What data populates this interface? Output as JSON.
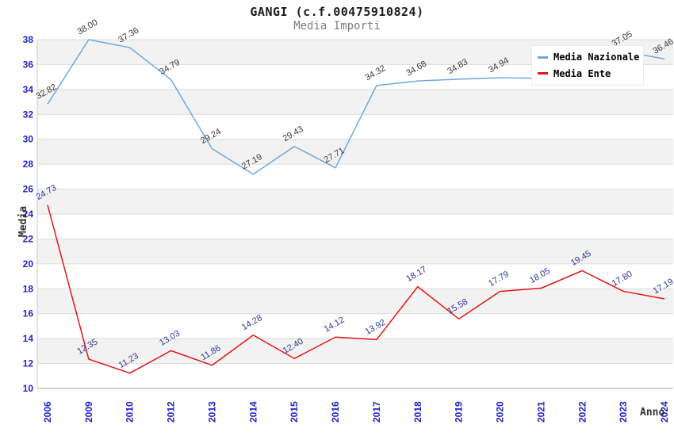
{
  "chart_data": {
    "type": "line",
    "title": "GANGI (c.f.00475910824)",
    "subtitle": "Media Importi",
    "xlabel": "Anno",
    "ylabel": "Media",
    "ylim": [
      10,
      38
    ],
    "ytick_step": 2,
    "grid": "horizontal gridlines with interlaced 2-unit bands",
    "legend_position": "top-right overlay",
    "categories": [
      "2006",
      "2009",
      "2010",
      "2012",
      "2013",
      "2014",
      "2015",
      "2016",
      "2017",
      "2018",
      "2019",
      "2020",
      "2021",
      "2022",
      "2023",
      "2024"
    ],
    "series": [
      {
        "name": "Media Nazionale",
        "color": "#6fa8dc",
        "label_color": "#383838",
        "values": [
          32.82,
          38.0,
          37.36,
          34.79,
          29.24,
          27.19,
          29.43,
          27.71,
          34.32,
          34.68,
          34.83,
          34.94,
          34.9,
          34.9,
          37.05,
          36.46
        ],
        "labels": [
          "32.82",
          "38.00",
          "37.36",
          "34.79",
          "29.24",
          "27.19",
          "29.43",
          "27.71",
          "34.32",
          "34.68",
          "34.83",
          "34.94",
          "",
          "",
          "37.05",
          "36.46"
        ]
      },
      {
        "name": "Media Ente",
        "color": "#e51717",
        "label_color": "#333399",
        "values": [
          24.73,
          12.35,
          11.23,
          13.03,
          11.86,
          14.28,
          12.4,
          14.12,
          13.92,
          18.17,
          15.58,
          17.79,
          18.05,
          19.45,
          17.8,
          17.19
        ],
        "labels": [
          "24.73",
          "12.35",
          "11.23",
          "13.03",
          "11.86",
          "14.28",
          "12.40",
          "14.12",
          "13.92",
          "18.17",
          "15.58",
          "17.79",
          "18.05",
          "19.45",
          "17.80",
          "17.19"
        ]
      }
    ]
  },
  "colors": {
    "tick_label": "#2323cd",
    "band_fill": "#f2f2f2",
    "gridline": "#dcdcdc",
    "plot_left_border": "#c9c9c9",
    "axis_bottom_line": "#a8a8a8",
    "background": "#ffffff"
  }
}
